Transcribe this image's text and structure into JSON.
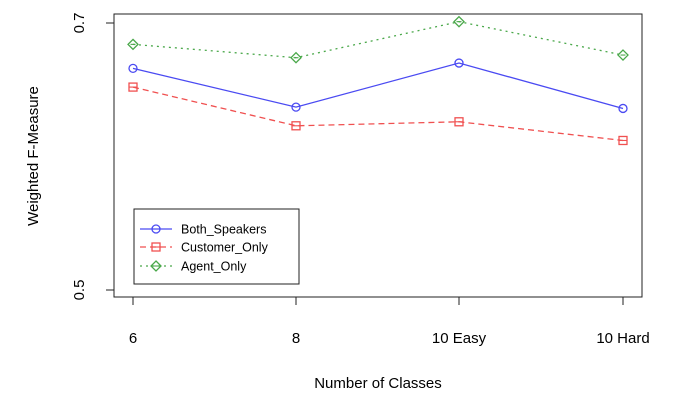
{
  "chart_data": {
    "type": "line",
    "title": "",
    "xlabel": "Number of Classes",
    "ylabel": "Weighted F-Measure",
    "categories": [
      "6",
      "8",
      "10 Easy",
      "10 Hard"
    ],
    "ylim": [
      0.5,
      0.7
    ],
    "y_ticks": [
      "0.5",
      "0.7"
    ],
    "grid": false,
    "legend_position": "bottom-left",
    "series": [
      {
        "name": "Both_Speakers",
        "color": "#4a4af2",
        "marker": "circle",
        "dash": "solid",
        "values": [
          0.666,
          0.637,
          0.67,
          0.636
        ]
      },
      {
        "name": "Customer_Only",
        "color": "#f05050",
        "marker": "square",
        "dash": "dashed",
        "values": [
          0.652,
          0.623,
          0.626,
          0.612
        ]
      },
      {
        "name": "Agent_Only",
        "color": "#4aa84a",
        "marker": "diamond",
        "dash": "dotted",
        "values": [
          0.684,
          0.674,
          0.701,
          0.676
        ]
      }
    ]
  }
}
